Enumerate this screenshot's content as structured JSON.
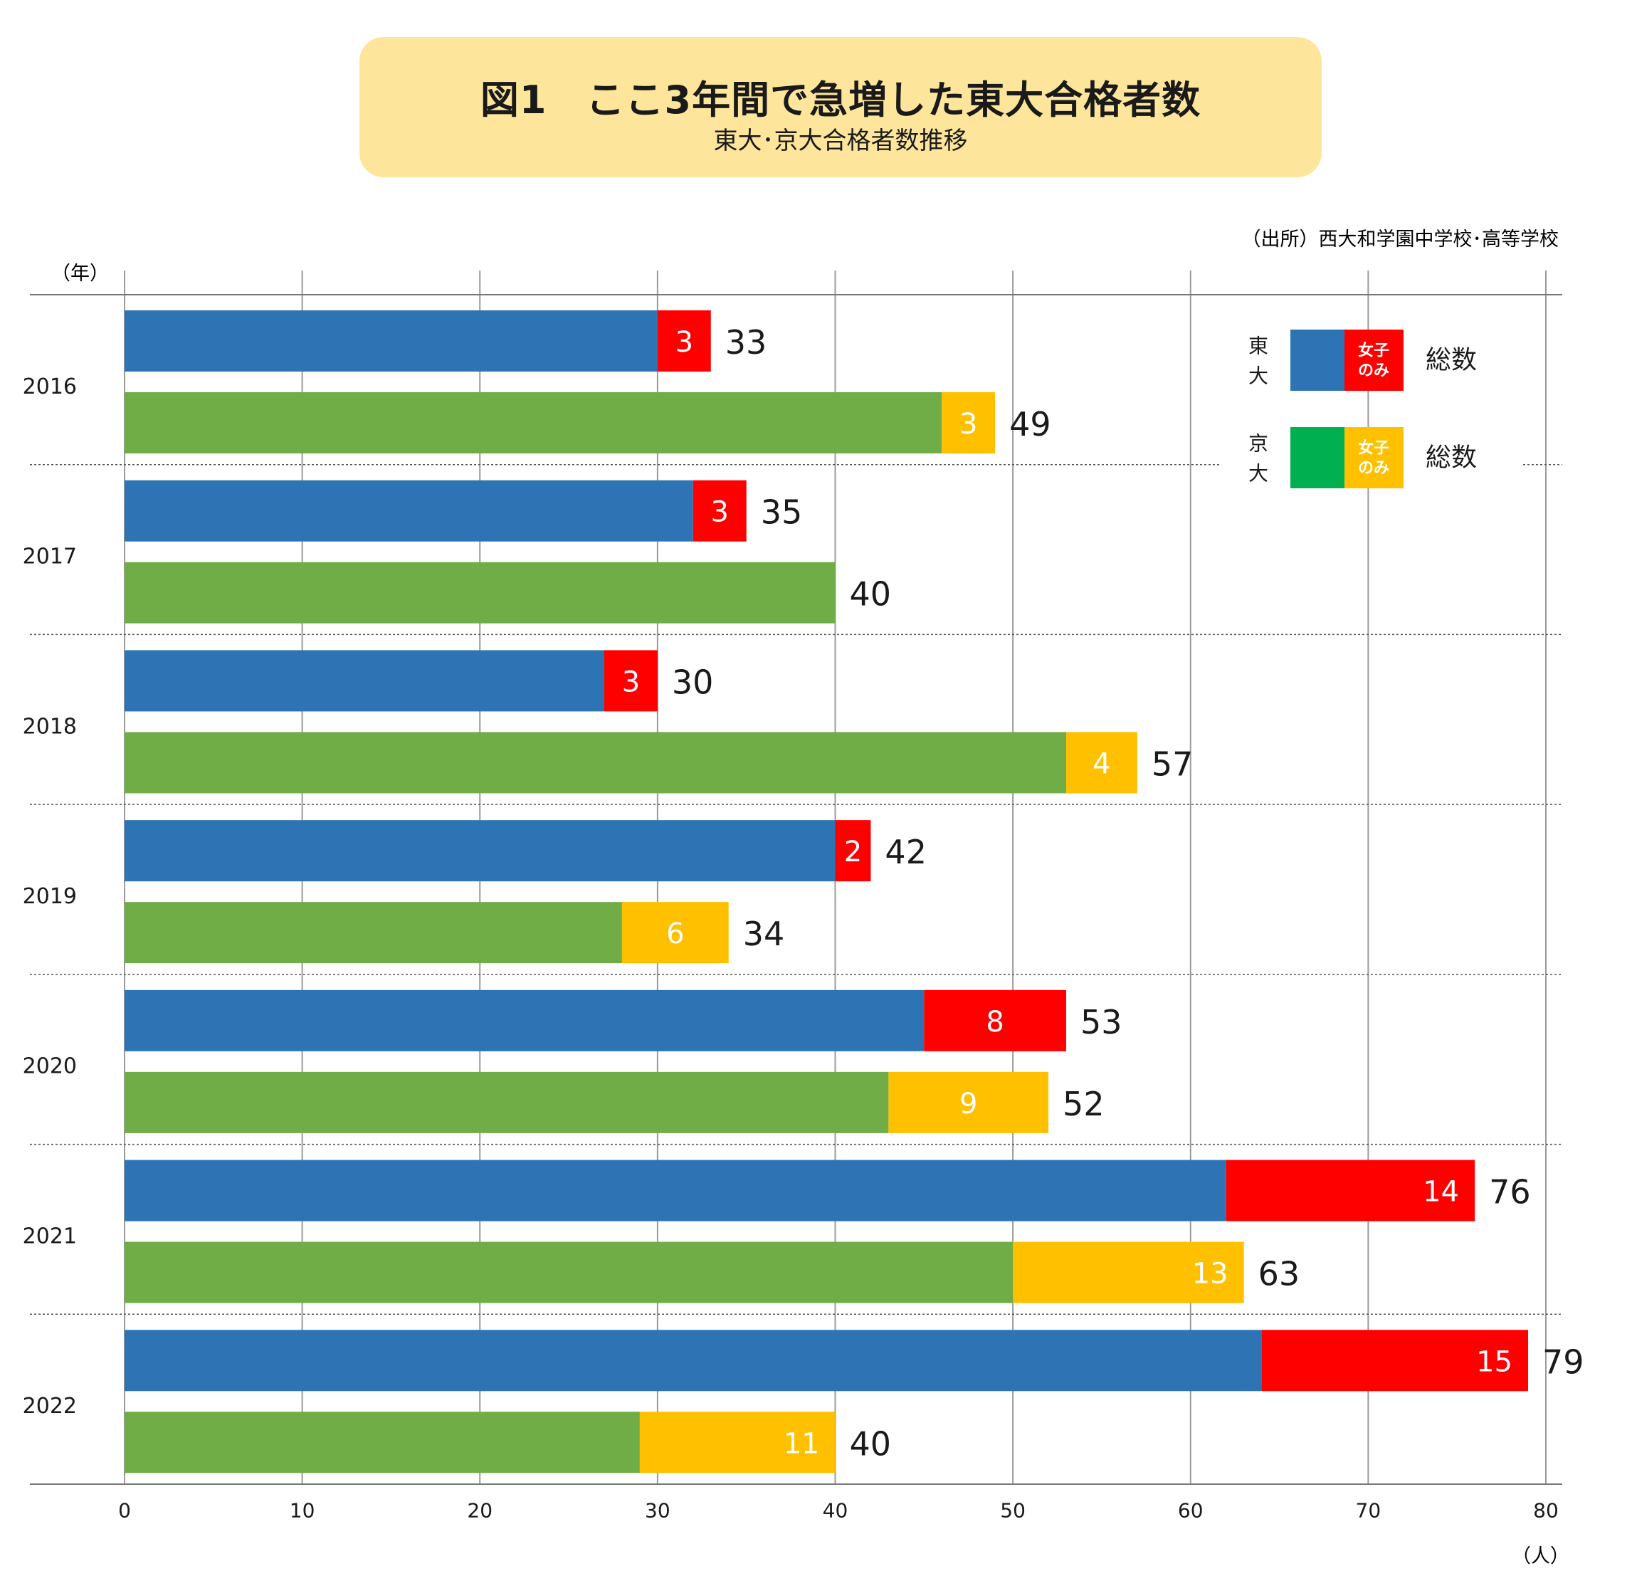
{
  "chart_data": {
    "type": "bar",
    "orientation": "horizontal",
    "stacked": true,
    "title": "図1　ここ3年間で急増した東大合格者数",
    "subtitle": "東大･京大合格者数推移",
    "source": "（出所）西大和学園中学校･高等学校",
    "ylabel": "（年）",
    "xlabel": "（人）",
    "xlim": [
      0,
      80
    ],
    "xticks": [
      0,
      10,
      20,
      30,
      40,
      50,
      60,
      70,
      80
    ],
    "grid": true,
    "categories": [
      "2016",
      "2017",
      "2018",
      "2019",
      "2020",
      "2021",
      "2022"
    ],
    "series": [
      {
        "university": "東大",
        "color_total": "#2e74b5",
        "color_women": "#ff0000",
        "totals": [
          33,
          35,
          30,
          42,
          53,
          76,
          79
        ],
        "women": [
          3,
          3,
          3,
          2,
          8,
          14,
          15
        ]
      },
      {
        "university": "京大",
        "color_total": "#70ad47",
        "color_women": "#ffc000",
        "totals": [
          49,
          40,
          57,
          34,
          52,
          63,
          40
        ],
        "women": [
          3,
          null,
          4,
          6,
          9,
          13,
          11
        ]
      }
    ],
    "legend": {
      "placement": "top-right",
      "women_label": "女子のみ",
      "total_label": "総数",
      "items": [
        {
          "name": "東大",
          "swatch": "#2e74b5",
          "women_swatch": "#ff0000"
        },
        {
          "name": "京大",
          "swatch": "#00b050",
          "women_swatch": "#ffc000"
        }
      ]
    }
  }
}
